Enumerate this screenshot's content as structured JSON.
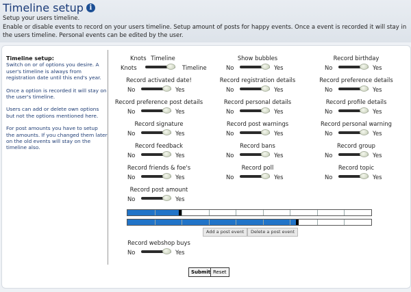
{
  "header": {
    "title": "Timeline setup",
    "subtitle": "Setup your users timeline.",
    "description": "Enable or disable events to record on your users timeline. Setup amount of posts for happy events. Once a event is recorded it will stay in the users timeline. Personal events can be edited by the user."
  },
  "sidebar": {
    "heading": "Timeline setup:",
    "p1": "Switch on or of options you desire. A user's timeline is always from registration date until this end's year.",
    "p2": "Once a option is recorded it will stay on the user's timeline.",
    "p3": "Users can add or delete own options but not the options mentioned here.",
    "p4": "For post amounts you have to setup the amounts. If you changed them later on the old events will stay on the timeline also."
  },
  "options": {
    "knots": {
      "left_label": "Knots",
      "label": "Timeline",
      "no": "Knots",
      "yes": "Timeline"
    },
    "show_bubbles": {
      "label": "Show bubbles",
      "no": "No",
      "yes": "Yes"
    },
    "record_birthday": {
      "label": "Record birthday",
      "no": "No",
      "yes": "Yes"
    },
    "record_activated_date": {
      "label": "Record activated date!",
      "no": "No",
      "yes": "Yes"
    },
    "record_registration_details": {
      "label": "Record registration details",
      "no": "No",
      "yes": "Yes"
    },
    "record_preference_details": {
      "label": "Record preference details",
      "no": "No",
      "yes": "Yes"
    },
    "record_preference_post_details": {
      "label": "Record preference post details",
      "no": "No",
      "yes": "Yes"
    },
    "record_personal_details": {
      "label": "Record personal details",
      "no": "No",
      "yes": "Yes"
    },
    "record_profile_details": {
      "label": "Record profile details",
      "no": "No",
      "yes": "Yes"
    },
    "record_signature": {
      "label": "Record signature",
      "no": "No",
      "yes": "Yes"
    },
    "record_post_warnings": {
      "label": "Record post warnings",
      "no": "No",
      "yes": "Yes"
    },
    "record_personal_warning": {
      "label": "Record personal warning",
      "no": "No",
      "yes": "Yes"
    },
    "record_feedback": {
      "label": "Record feedback",
      "no": "No",
      "yes": "Yes"
    },
    "record_bans": {
      "label": "Record bans",
      "no": "No",
      "yes": "Yes"
    },
    "record_group": {
      "label": "Record group",
      "no": "No",
      "yes": "Yes"
    },
    "record_friends_foes": {
      "label": "Record friends & foe's",
      "no": "No",
      "yes": "Yes"
    },
    "record_poll": {
      "label": "Record poll",
      "no": "No",
      "yes": "Yes"
    },
    "record_topic": {
      "label": "Record topic",
      "no": "No",
      "yes": "Yes"
    },
    "record_post_amount": {
      "label": "Record post amount",
      "no": "No",
      "yes": "Yes"
    },
    "record_webshop_buys": {
      "label": "Record webshop buys",
      "no": "No",
      "yes": "Yes"
    }
  },
  "post_bars": [
    {
      "fill_fraction": 0.21
    },
    {
      "fill_fraction": 0.69
    }
  ],
  "buttons": {
    "add_post_event": "Add a post event",
    "delete_post_event": "Delete a post event",
    "submit": "Submit",
    "reset": "Reset"
  },
  "colors": {
    "accent": "#2174c8",
    "title": "#1b3b78",
    "sidebar_text": "#1e3c74"
  },
  "icons": {
    "info": "info-icon"
  }
}
